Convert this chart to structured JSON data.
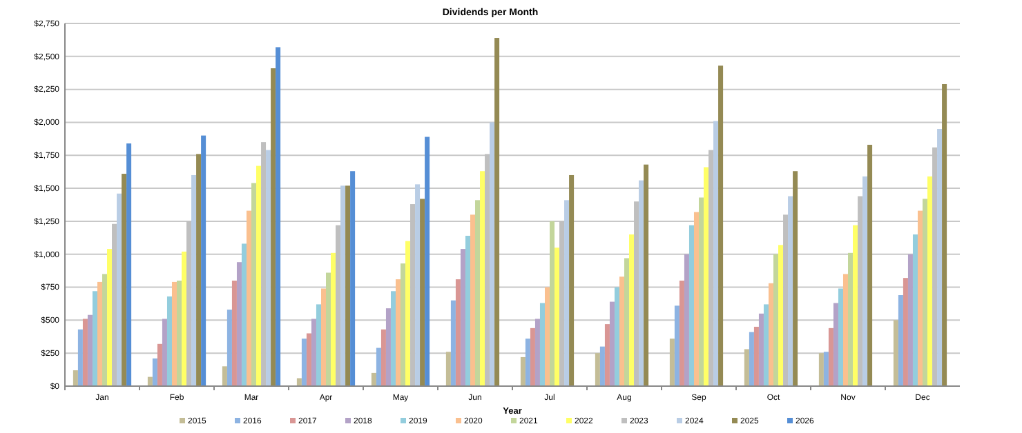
{
  "chart_data": {
    "type": "bar",
    "title": "Dividends per Month",
    "xlabel": "Year",
    "categories": [
      "Jan",
      "Feb",
      "Mar",
      "Apr",
      "May",
      "Jun",
      "Jul",
      "Aug",
      "Sep",
      "Oct",
      "Nov",
      "Dec"
    ],
    "series": [
      {
        "name": "2015",
        "color": "#c4bd97",
        "values": [
          120,
          70,
          150,
          60,
          100,
          260,
          220,
          250,
          360,
          280,
          250,
          500
        ]
      },
      {
        "name": "2016",
        "color": "#8db3e2",
        "values": [
          430,
          210,
          580,
          360,
          290,
          650,
          360,
          300,
          610,
          410,
          260,
          690
        ]
      },
      {
        "name": "2017",
        "color": "#d99694",
        "values": [
          510,
          320,
          800,
          400,
          430,
          810,
          440,
          470,
          800,
          450,
          440,
          820
        ]
      },
      {
        "name": "2018",
        "color": "#b3a2c7",
        "values": [
          540,
          510,
          940,
          510,
          590,
          1040,
          510,
          640,
          1000,
          550,
          630,
          1000
        ]
      },
      {
        "name": "2019",
        "color": "#93cddd",
        "values": [
          720,
          680,
          1080,
          620,
          720,
          1140,
          630,
          750,
          1220,
          620,
          740,
          1150
        ]
      },
      {
        "name": "2020",
        "color": "#fac08f",
        "values": [
          790,
          790,
          1330,
          740,
          810,
          1300,
          750,
          830,
          1320,
          780,
          850,
          1330
        ]
      },
      {
        "name": "2021",
        "color": "#c3d69b",
        "values": [
          850,
          800,
          1540,
          860,
          930,
          1410,
          1250,
          970,
          1430,
          1000,
          1010,
          1420
        ]
      },
      {
        "name": "2022",
        "color": "#ffff66",
        "values": [
          1040,
          1020,
          1670,
          1010,
          1100,
          1630,
          1050,
          1150,
          1660,
          1070,
          1220,
          1590
        ]
      },
      {
        "name": "2023",
        "color": "#bfbfbf",
        "values": [
          1230,
          1250,
          1850,
          1220,
          1380,
          1760,
          1250,
          1400,
          1790,
          1300,
          1440,
          1810
        ]
      },
      {
        "name": "2024",
        "color": "#b9cde5",
        "values": [
          1460,
          1600,
          1790,
          1520,
          1530,
          2000,
          1410,
          1560,
          2010,
          1440,
          1590,
          1950
        ]
      },
      {
        "name": "2025",
        "color": "#948a54",
        "values": [
          1610,
          1760,
          2410,
          1520,
          1420,
          2640,
          1600,
          1680,
          2430,
          1630,
          1830,
          2290
        ]
      },
      {
        "name": "2026",
        "color": "#558ed5",
        "values": [
          1840,
          1900,
          2570,
          1630,
          1890,
          null,
          null,
          null,
          null,
          null,
          null,
          null
        ]
      }
    ],
    "ylim": [
      0,
      2750
    ],
    "yticks": [
      {
        "value": 0,
        "label": "$0"
      },
      {
        "value": 250,
        "label": "$250"
      },
      {
        "value": 500,
        "label": "$500"
      },
      {
        "value": 750,
        "label": "$750"
      },
      {
        "value": 1000,
        "label": "$1,000"
      },
      {
        "value": 1250,
        "label": "$1,250"
      },
      {
        "value": 1500,
        "label": "$1,500"
      },
      {
        "value": 1750,
        "label": "$1,750"
      },
      {
        "value": 2000,
        "label": "$2,000"
      },
      {
        "value": 2250,
        "label": "$2,250"
      },
      {
        "value": 2500,
        "label": "$2,500"
      },
      {
        "value": 2750,
        "label": "$2,750"
      }
    ],
    "grid": "y",
    "legend": "bottom"
  }
}
